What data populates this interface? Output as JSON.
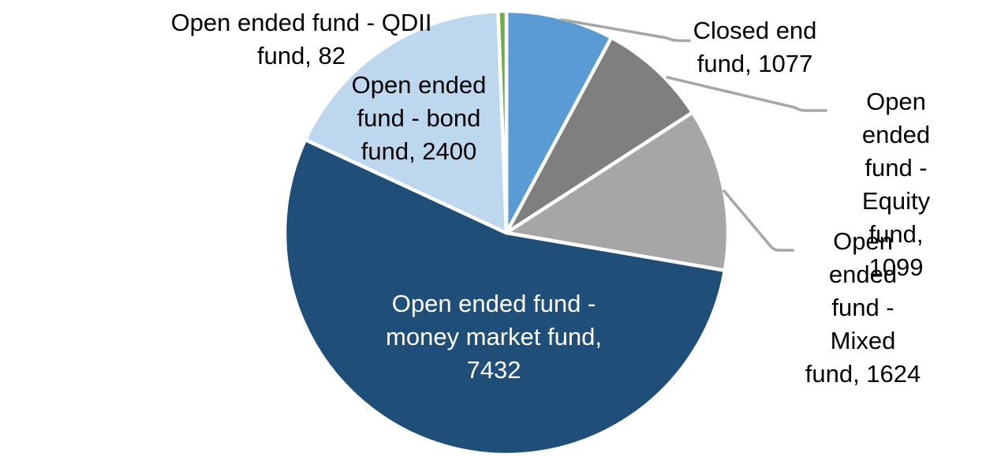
{
  "chart_data": {
    "type": "pie",
    "title": "",
    "legend_position": "none",
    "start_angle_deg": 0,
    "direction": "clockwise",
    "data_labels": "category-name-and-value",
    "slices": [
      {
        "label": "Closed end fund",
        "value": 1077,
        "color": "#5B9BD5"
      },
      {
        "label": "Open ended fund - Equity fund",
        "value": 1099,
        "color": "#7F7F7F"
      },
      {
        "label": "Open ended fund - Mixed fund",
        "value": 1624,
        "color": "#A6A6A6"
      },
      {
        "label": "Open ended fund - money market fund",
        "value": 7432,
        "color": "#1F4E79"
      },
      {
        "label": "Open ended fund - bond fund",
        "value": 2400,
        "color": "#BDD7EE"
      },
      {
        "label": "Open ended fund - QDII fund",
        "value": 82,
        "color": "#70AD47"
      }
    ]
  },
  "labels": {
    "closed_end": {
      "text": "Closed end\nfund, 1077"
    },
    "equity": {
      "text": "Open ended\nfund - Equity\nfund, 1099"
    },
    "mixed": {
      "text": "Open ended\nfund - Mixed\nfund, 1624"
    },
    "money_market": {
      "text": "Open ended fund -\nmoney market fund,\n7432"
    },
    "bond": {
      "text": "Open ended\nfund - bond\nfund, 2400"
    },
    "qdii": {
      "text": "Open ended fund - QDII\nfund, 82"
    }
  },
  "colors": {
    "leader_line": "#A6A6A6",
    "slice_border": "#FFFFFF",
    "label_text": "#000000",
    "inside_label_text": "#FFFFFF"
  }
}
